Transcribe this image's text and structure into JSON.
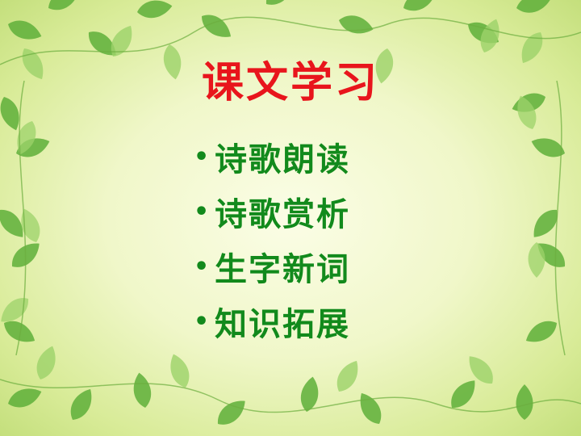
{
  "slide": {
    "title": "课文学习",
    "items": [
      {
        "label": "诗歌朗读"
      },
      {
        "label": "诗歌赏析"
      },
      {
        "label": "生字新词"
      },
      {
        "label": "知识拓展"
      }
    ]
  },
  "colors": {
    "title": "#e8151c",
    "items": "#128a1c",
    "leaf": "#5fb03a",
    "leaf_light": "#9dd36a"
  }
}
